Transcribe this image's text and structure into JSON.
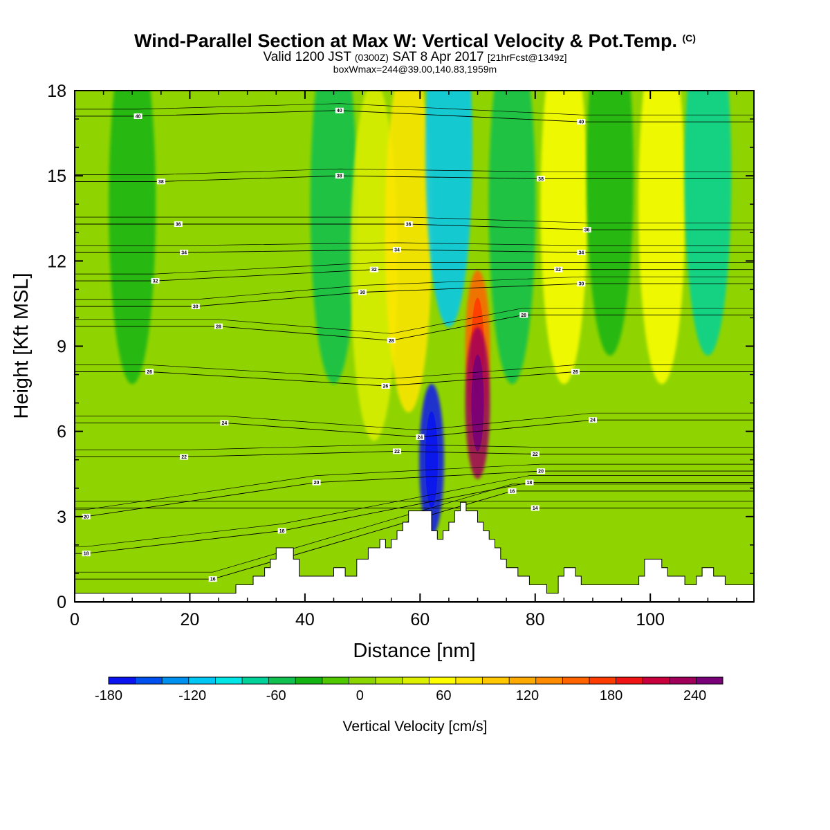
{
  "header": {
    "title_main": "Wind-Parallel Section at Max W: Vertical Velocity & Pot.Temp.",
    "title_mark": "(C)",
    "valid_prefix": "Valid 1200 JST",
    "valid_utc": "(0300Z)",
    "valid_date": "SAT 8 Apr 2017",
    "valid_fcst": "[21hrFcst@1349z]",
    "box_info": "boxWmax=244@39.00,140.83,1959m"
  },
  "chart_data": {
    "type": "heatmap",
    "title": "Wind-Parallel Section at Max W: Vertical Velocity & Pot.Temp. (C)",
    "xlabel": "Distance [nm]",
    "ylabel": "Height [Kft MSL]",
    "xlim": [
      0,
      118
    ],
    "ylim": [
      0,
      18
    ],
    "x_ticks": [
      0,
      20,
      40,
      60,
      80,
      100
    ],
    "y_ticks": [
      0,
      3,
      6,
      9,
      12,
      15,
      18
    ],
    "colorbar": {
      "label": "Vertical Velocity [cm/s]",
      "ticks": [
        -180,
        -120,
        -60,
        0,
        60,
        120,
        180,
        240
      ],
      "range": [
        -180,
        260
      ],
      "colors": [
        "#0a14f0",
        "#0050f0",
        "#0090f0",
        "#00c8f5",
        "#00e6e6",
        "#00d29a",
        "#10c050",
        "#14b414",
        "#50c800",
        "#8cd600",
        "#b4e600",
        "#dcf000",
        "#ffff00",
        "#ffe600",
        "#ffc800",
        "#ffaa00",
        "#ff8c00",
        "#ff6400",
        "#ff3c00",
        "#f01414",
        "#c8003c",
        "#a0005a",
        "#780078"
      ]
    },
    "series": [
      {
        "name": "Vertical Velocity [cm/s]",
        "values": [
          {
            "x": 10,
            "y": 14,
            "v": -30
          },
          {
            "x": 45,
            "y": 14,
            "v": -50
          },
          {
            "x": 52,
            "y": 12,
            "v": 40
          },
          {
            "x": 58,
            "y": 13,
            "v": 80
          },
          {
            "x": 65,
            "y": 16,
            "v": -110
          },
          {
            "x": 70,
            "y": 9,
            "v": 150
          },
          {
            "x": 70,
            "y": 7,
            "v": 230
          },
          {
            "x": 62,
            "y": 5,
            "v": -170
          },
          {
            "x": 76,
            "y": 14,
            "v": -60
          },
          {
            "x": 85,
            "y": 14,
            "v": 60
          },
          {
            "x": 93,
            "y": 15,
            "v": -40
          },
          {
            "x": 102,
            "y": 14,
            "v": 50
          },
          {
            "x": 110,
            "y": 15,
            "v": -70
          }
        ]
      },
      {
        "name": "Pot.Temp. (C)",
        "values": [
          {
            "x": 2,
            "y": 3,
            "v": 20
          },
          {
            "x": 2,
            "y": 1.7,
            "v": 18
          },
          {
            "x": 24,
            "y": 0.8,
            "v": 16
          },
          {
            "x": 36,
            "y": 2.5,
            "v": 18
          },
          {
            "x": 42,
            "y": 4.2,
            "v": 20
          },
          {
            "x": 19,
            "y": 5.1,
            "v": 22
          },
          {
            "x": 26,
            "y": 6.3,
            "v": 24
          },
          {
            "x": 13,
            "y": 8.1,
            "v": 26
          },
          {
            "x": 25,
            "y": 9.7,
            "v": 28
          },
          {
            "x": 21,
            "y": 10.4,
            "v": 30
          },
          {
            "x": 14,
            "y": 11.3,
            "v": 32
          },
          {
            "x": 19,
            "y": 12.3,
            "v": 34
          },
          {
            "x": 18,
            "y": 13.3,
            "v": 36
          },
          {
            "x": 15,
            "y": 14.8,
            "v": 38
          },
          {
            "x": 11,
            "y": 17.1,
            "v": 40
          },
          {
            "x": 56,
            "y": 5.3,
            "v": 22
          },
          {
            "x": 60,
            "y": 5.8,
            "v": 24
          },
          {
            "x": 54,
            "y": 7.6,
            "v": 26
          },
          {
            "x": 55,
            "y": 9.2,
            "v": 28
          },
          {
            "x": 50,
            "y": 10.9,
            "v": 30
          },
          {
            "x": 52,
            "y": 11.7,
            "v": 32
          },
          {
            "x": 56,
            "y": 12.4,
            "v": 34
          },
          {
            "x": 58,
            "y": 13.3,
            "v": 36
          },
          {
            "x": 46,
            "y": 15,
            "v": 38
          },
          {
            "x": 46,
            "y": 17.3,
            "v": 40
          },
          {
            "x": 80,
            "y": 3.3,
            "v": 14
          },
          {
            "x": 76,
            "y": 3.9,
            "v": 16
          },
          {
            "x": 79,
            "y": 4.2,
            "v": 18
          },
          {
            "x": 81,
            "y": 4.6,
            "v": 20
          },
          {
            "x": 80,
            "y": 5.2,
            "v": 22
          },
          {
            "x": 90,
            "y": 6.4,
            "v": 24
          },
          {
            "x": 87,
            "y": 8.1,
            "v": 26
          },
          {
            "x": 78,
            "y": 10.1,
            "v": 28
          },
          {
            "x": 88,
            "y": 11.2,
            "v": 30
          },
          {
            "x": 84,
            "y": 11.7,
            "v": 32
          },
          {
            "x": 88,
            "y": 12.3,
            "v": 34
          },
          {
            "x": 89,
            "y": 13.1,
            "v": 36
          },
          {
            "x": 81,
            "y": 14.9,
            "v": 38
          },
          {
            "x": 88,
            "y": 16.9,
            "v": 40
          }
        ]
      }
    ],
    "terrain": [
      {
        "x": 0,
        "y": 0.3
      },
      {
        "x": 28,
        "y": 0.3
      },
      {
        "x": 28,
        "y": 0.6
      },
      {
        "x": 31,
        "y": 0.6
      },
      {
        "x": 31,
        "y": 0.9
      },
      {
        "x": 33,
        "y": 0.9
      },
      {
        "x": 33,
        "y": 1.2
      },
      {
        "x": 34,
        "y": 1.2
      },
      {
        "x": 34,
        "y": 1.5
      },
      {
        "x": 35,
        "y": 1.5
      },
      {
        "x": 35,
        "y": 1.9
      },
      {
        "x": 38,
        "y": 1.9
      },
      {
        "x": 38,
        "y": 1.5
      },
      {
        "x": 39,
        "y": 1.5
      },
      {
        "x": 39,
        "y": 0.9
      },
      {
        "x": 45,
        "y": 0.9
      },
      {
        "x": 45,
        "y": 1.2
      },
      {
        "x": 47,
        "y": 1.2
      },
      {
        "x": 47,
        "y": 0.9
      },
      {
        "x": 49,
        "y": 0.9
      },
      {
        "x": 49,
        "y": 1.5
      },
      {
        "x": 51,
        "y": 1.5
      },
      {
        "x": 51,
        "y": 1.9
      },
      {
        "x": 53,
        "y": 1.9
      },
      {
        "x": 53,
        "y": 2.2
      },
      {
        "x": 54,
        "y": 2.2
      },
      {
        "x": 54,
        "y": 1.9
      },
      {
        "x": 55,
        "y": 1.9
      },
      {
        "x": 55,
        "y": 2.2
      },
      {
        "x": 56,
        "y": 2.2
      },
      {
        "x": 56,
        "y": 2.5
      },
      {
        "x": 57,
        "y": 2.5
      },
      {
        "x": 57,
        "y": 2.8
      },
      {
        "x": 58,
        "y": 2.8
      },
      {
        "x": 58,
        "y": 3.2
      },
      {
        "x": 62,
        "y": 3.2
      },
      {
        "x": 62,
        "y": 2.5
      },
      {
        "x": 63,
        "y": 2.5
      },
      {
        "x": 63,
        "y": 2.2
      },
      {
        "x": 64,
        "y": 2.2
      },
      {
        "x": 64,
        "y": 2.5
      },
      {
        "x": 65,
        "y": 2.5
      },
      {
        "x": 65,
        "y": 2.8
      },
      {
        "x": 66,
        "y": 2.8
      },
      {
        "x": 66,
        "y": 3.2
      },
      {
        "x": 67,
        "y": 3.2
      },
      {
        "x": 67,
        "y": 3.5
      },
      {
        "x": 68,
        "y": 3.5
      },
      {
        "x": 68,
        "y": 3.2
      },
      {
        "x": 70,
        "y": 3.2
      },
      {
        "x": 70,
        "y": 2.8
      },
      {
        "x": 71,
        "y": 2.8
      },
      {
        "x": 71,
        "y": 2.5
      },
      {
        "x": 72,
        "y": 2.5
      },
      {
        "x": 72,
        "y": 2.2
      },
      {
        "x": 73,
        "y": 2.2
      },
      {
        "x": 73,
        "y": 1.9
      },
      {
        "x": 74,
        "y": 1.9
      },
      {
        "x": 74,
        "y": 1.5
      },
      {
        "x": 75,
        "y": 1.5
      },
      {
        "x": 75,
        "y": 1.2
      },
      {
        "x": 77,
        "y": 1.2
      },
      {
        "x": 77,
        "y": 0.9
      },
      {
        "x": 79,
        "y": 0.9
      },
      {
        "x": 79,
        "y": 0.6
      },
      {
        "x": 82,
        "y": 0.6
      },
      {
        "x": 82,
        "y": 0.3
      },
      {
        "x": 84,
        "y": 0.3
      },
      {
        "x": 84,
        "y": 0.9
      },
      {
        "x": 85,
        "y": 0.9
      },
      {
        "x": 85,
        "y": 1.2
      },
      {
        "x": 87,
        "y": 1.2
      },
      {
        "x": 87,
        "y": 0.9
      },
      {
        "x": 88,
        "y": 0.9
      },
      {
        "x": 88,
        "y": 0.6
      },
      {
        "x": 98,
        "y": 0.6
      },
      {
        "x": 98,
        "y": 0.9
      },
      {
        "x": 99,
        "y": 0.9
      },
      {
        "x": 99,
        "y": 1.5
      },
      {
        "x": 102,
        "y": 1.5
      },
      {
        "x": 102,
        "y": 1.2
      },
      {
        "x": 103,
        "y": 1.2
      },
      {
        "x": 103,
        "y": 0.9
      },
      {
        "x": 106,
        "y": 0.9
      },
      {
        "x": 106,
        "y": 0.6
      },
      {
        "x": 108,
        "y": 0.6
      },
      {
        "x": 108,
        "y": 0.9
      },
      {
        "x": 109,
        "y": 0.9
      },
      {
        "x": 109,
        "y": 1.2
      },
      {
        "x": 111,
        "y": 1.2
      },
      {
        "x": 111,
        "y": 0.9
      },
      {
        "x": 113,
        "y": 0.9
      },
      {
        "x": 113,
        "y": 0.6
      },
      {
        "x": 118,
        "y": 0.6
      }
    ]
  }
}
